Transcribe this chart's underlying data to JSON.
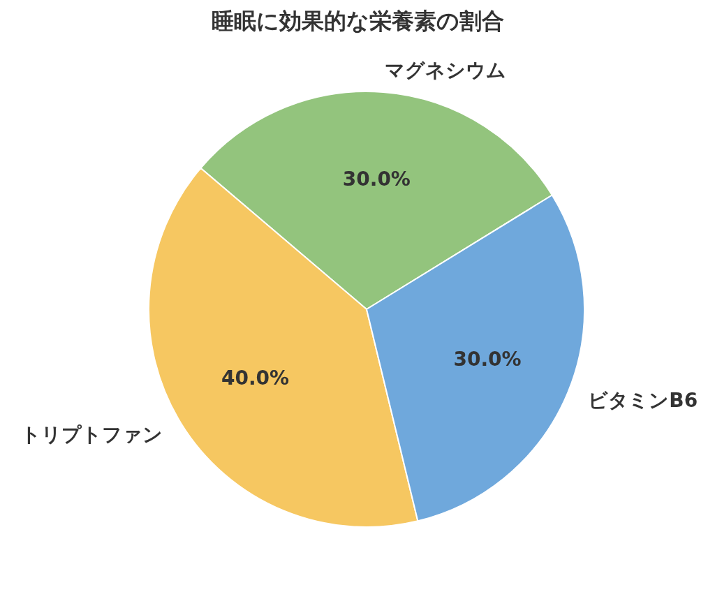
{
  "chart_data": {
    "type": "pie",
    "title": "睡眠に効果的な栄養素の割合",
    "categories": [
      "マグネシウム",
      "トリプトファン",
      "ビタミンB6"
    ],
    "values": [
      30,
      40,
      30
    ],
    "colors": [
      "#93c47d",
      "#f6c761",
      "#6fa8dc"
    ],
    "value_labels": [
      "30.0%",
      "40.0%",
      "30.0%"
    ]
  }
}
